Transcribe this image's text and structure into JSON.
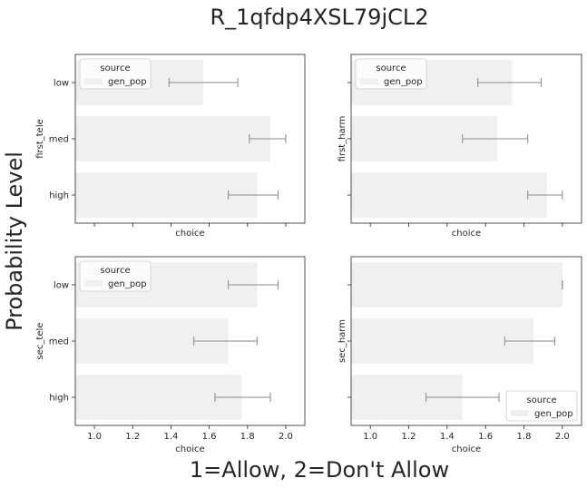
{
  "figure": {
    "title": "R_1qfdp4XSL79jCL2",
    "ylabel": "Probability Level",
    "xlabel": "1=Allow, 2=Don't Allow"
  },
  "chart_data": [
    {
      "type": "bar",
      "orientation": "horizontal",
      "categories": [
        "low",
        "med",
        "high"
      ],
      "ylabel": "first_tele",
      "xlabel": "choice",
      "xlim": [
        0.9,
        2.1
      ],
      "x_tick_labels_shown": false,
      "legend": {
        "title": "source",
        "entries": [
          "gen_pop"
        ],
        "placement": "upper-left"
      },
      "series": [
        {
          "name": "gen_pop",
          "values": [
            1.57,
            1.92,
            1.85
          ],
          "ci_low": [
            1.39,
            1.81,
            1.7
          ],
          "ci_high": [
            1.75,
            2.0,
            1.96
          ]
        }
      ]
    },
    {
      "type": "bar",
      "orientation": "horizontal",
      "categories": [
        "low",
        "med",
        "high"
      ],
      "ylabel": "first_harm",
      "xlabel": "choice",
      "xlim": [
        0.9,
        2.1
      ],
      "x_tick_labels_shown": false,
      "legend": {
        "title": "source",
        "entries": [
          "gen_pop"
        ],
        "placement": "upper-left"
      },
      "series": [
        {
          "name": "gen_pop",
          "values": [
            1.74,
            1.66,
            1.92
          ],
          "ci_low": [
            1.56,
            1.48,
            1.82
          ],
          "ci_high": [
            1.89,
            1.82,
            2.0
          ]
        }
      ]
    },
    {
      "type": "bar",
      "orientation": "horizontal",
      "categories": [
        "low",
        "med",
        "high"
      ],
      "ylabel": "sec_tele",
      "xlabel": "choice",
      "xlim": [
        0.9,
        2.1
      ],
      "x_tick_labels_shown": true,
      "legend": {
        "title": "source",
        "entries": [
          "gen_pop"
        ],
        "placement": "upper-left"
      },
      "series": [
        {
          "name": "gen_pop",
          "values": [
            1.85,
            1.7,
            1.77
          ],
          "ci_low": [
            1.7,
            1.52,
            1.63
          ],
          "ci_high": [
            1.96,
            1.85,
            1.92
          ]
        }
      ]
    },
    {
      "type": "bar",
      "orientation": "horizontal",
      "categories": [
        "low",
        "med",
        "high"
      ],
      "ylabel": "sec_harm",
      "xlabel": "choice",
      "xlim": [
        0.9,
        2.1
      ],
      "x_tick_labels_shown": true,
      "legend": {
        "title": "source",
        "entries": [
          "gen_pop"
        ],
        "placement": "lower-right"
      },
      "series": [
        {
          "name": "gen_pop",
          "values": [
            2.0,
            1.85,
            1.48
          ],
          "ci_low": [
            2.0,
            1.7,
            1.29
          ],
          "ci_high": [
            2.0,
            1.96,
            1.67
          ]
        }
      ]
    }
  ],
  "x_ticks": [
    "1.0",
    "1.2",
    "1.4",
    "1.6",
    "1.8",
    "2.0"
  ],
  "colors": {
    "bar": "#f0f0f0",
    "errorbar": "#8a8a8a",
    "axes": "#262626"
  }
}
